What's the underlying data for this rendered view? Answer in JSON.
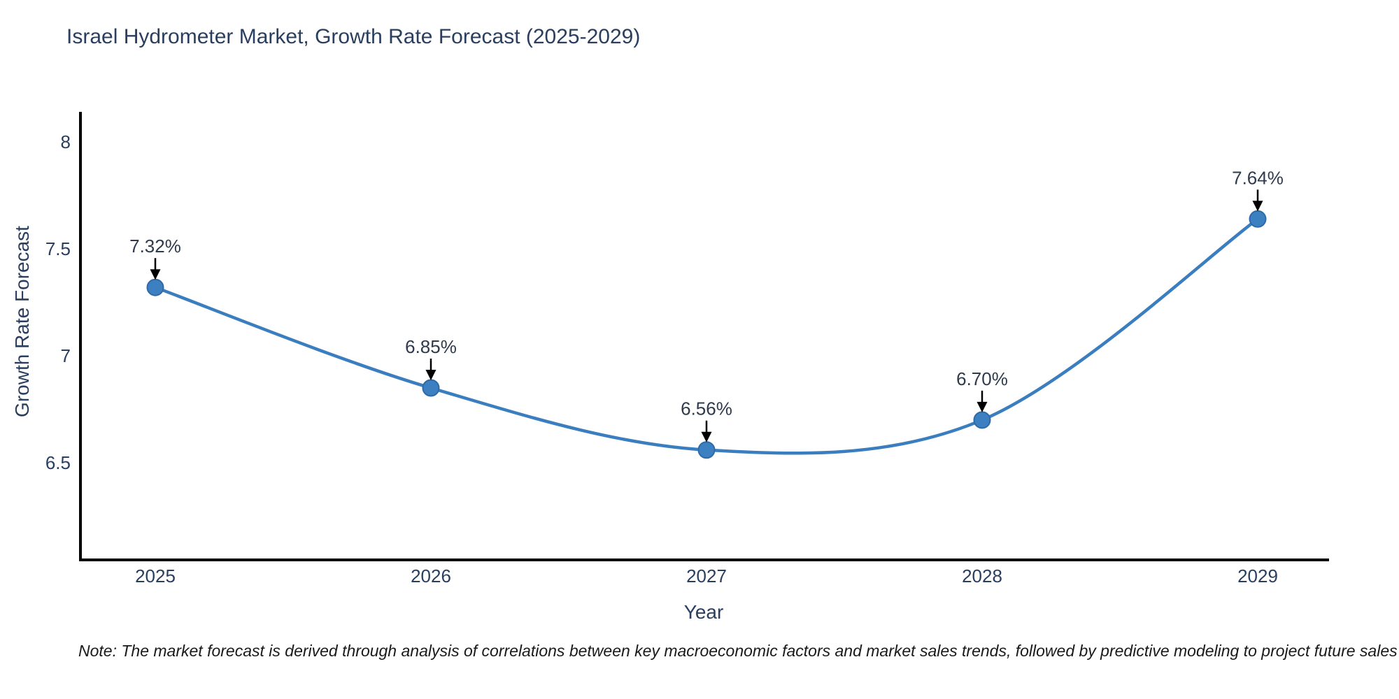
{
  "page": {
    "background": "#ffffff"
  },
  "chart_data": {
    "type": "line",
    "title": "Israel Hydrometer Market, Growth Rate Forecast (2025-2029)",
    "xlabel": "Year",
    "ylabel": "Growth Rate Forecast",
    "categories": [
      "2025",
      "2026",
      "2027",
      "2028",
      "2029"
    ],
    "values": [
      7.32,
      6.85,
      6.56,
      6.7,
      7.64
    ],
    "point_labels": [
      "7.32%",
      "6.85%",
      "6.56%",
      "6.70%",
      "7.64%"
    ],
    "y_ticks": [
      8,
      7.5,
      7,
      6.5
    ],
    "y_tick_labels": [
      "8",
      "7.5",
      "7",
      "6.5"
    ],
    "ylim": [
      6.046,
      8.141
    ],
    "curve": "spline",
    "grid": false,
    "legend": "none",
    "colors": {
      "line": "#3a7ebf",
      "marker_fill": "#3d80c2",
      "marker_edge": "#2e6ba6",
      "arrow": "#000000",
      "text": "#2a3f5f",
      "axis": "#000000"
    },
    "note": "Note: The market forecast is derived through analysis of correlations between key macroeconomic factors and market sales trends, followed by predictive modeling to project future sales"
  }
}
